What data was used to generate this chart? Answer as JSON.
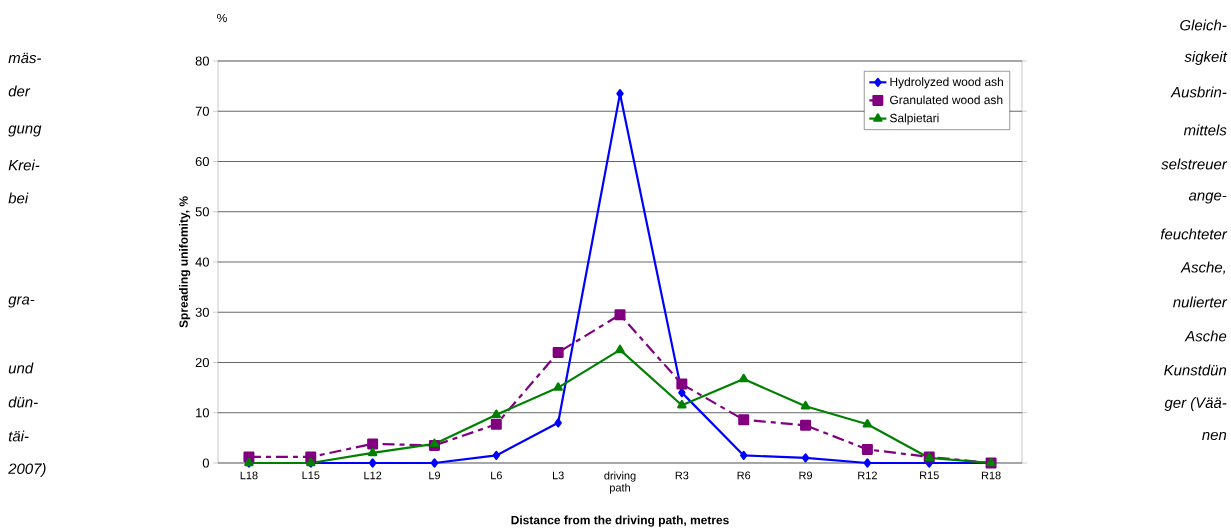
{
  "chart_data": {
    "type": "line",
    "xlabel": "Distance from the driving path, metres",
    "ylabel": "Spreading unifomity, %",
    "categories": [
      "L18",
      "L15",
      "L12",
      "L9",
      "L6",
      "L3",
      "driving path",
      "R3",
      "R6",
      "R9",
      "R12",
      "R15",
      "R18"
    ],
    "series": [
      {
        "name": "Hydrolyzed wood ash",
        "color": "#0000ff",
        "marker": "diamond",
        "line_style": "solid",
        "values": [
          0,
          0,
          0,
          0,
          1.5,
          8,
          73.5,
          14,
          1.5,
          1,
          0,
          0,
          0
        ]
      },
      {
        "name": "Granulated wood ash",
        "color": "#800080",
        "marker": "square",
        "line_style": "dashed",
        "values": [
          1.2,
          1.2,
          3.8,
          3.5,
          7.7,
          22,
          29.5,
          15.7,
          8.6,
          7.5,
          2.7,
          1.2,
          0
        ]
      },
      {
        "name": "Salpietari",
        "color": "#008000",
        "marker": "triangle",
        "line_style": "solid",
        "values": [
          0,
          0,
          2,
          3.8,
          9.6,
          15,
          22.5,
          11.5,
          16.7,
          11.3,
          7.7,
          1,
          0
        ]
      }
    ],
    "ylim": [
      0,
      80
    ],
    "yticks": [
      0,
      10,
      20,
      30,
      40,
      50,
      60,
      70,
      80
    ],
    "grid": "y",
    "legend": "top right",
    "annotations": [
      "%",
      "mäs-",
      "der",
      "gung",
      "Krei-",
      "bei",
      "gra-",
      "und",
      "dün-",
      "täi-",
      "2007)",
      "Gleich-",
      "sigkeit",
      "Ausbrin-",
      "mittels",
      "selstreuer",
      "ange-",
      "feuchteter",
      "Asche,",
      "nulierter",
      "Asche",
      "Kunstdün",
      "ger (Vää-",
      "nen"
    ]
  }
}
